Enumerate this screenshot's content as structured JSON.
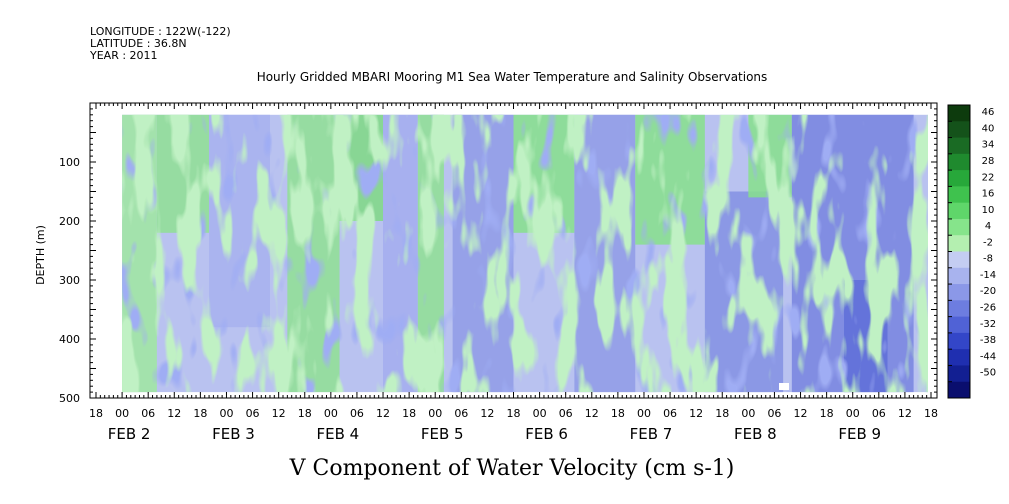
{
  "header": {
    "longitude": "LONGITUDE : 122W(-122)",
    "latitude": "LATITUDE : 36.8N",
    "year": "YEAR : 2011"
  },
  "chart_data": {
    "type": "heatmap",
    "title": "Hourly Gridded MBARI Mooring M1 Sea Water Temperature and Salinity Observations",
    "xlabel": "V Component of Water Velocity (cm s-1)",
    "ylabel": "DEPTH (m)",
    "x_start": "FEB 1 18:00",
    "x_end": "FEB 9 18:00",
    "x_hour_ticks": [
      "18",
      "00",
      "06",
      "12",
      "18",
      "00",
      "06",
      "12",
      "18",
      "00",
      "06",
      "12",
      "18",
      "00",
      "06",
      "12",
      "18",
      "00",
      "06",
      "12",
      "18",
      "00",
      "06",
      "12",
      "18",
      "00",
      "06",
      "12",
      "18",
      "00",
      "06",
      "12",
      "18"
    ],
    "x_day_labels": [
      "FEB 2",
      "FEB 3",
      "FEB 4",
      "FEB 5",
      "FEB 6",
      "FEB 7",
      "FEB 8",
      "FEB 9"
    ],
    "data_start": "FEB 2 00:00",
    "ylim": [
      500,
      0
    ],
    "y_ticks": [
      "100",
      "200",
      "300",
      "400",
      "500"
    ],
    "depth_range": [
      20,
      490
    ],
    "colorbar": {
      "ticks": [
        "46",
        "40",
        "34",
        "28",
        "22",
        "16",
        "10",
        "4",
        "-2",
        "-8",
        "-14",
        "-20",
        "-26",
        "-32",
        "-38",
        "-44",
        "-50"
      ],
      "colors": [
        "#0d3b0d",
        "#14521a",
        "#1a6b24",
        "#1f8a2e",
        "#27a83a",
        "#3fc24e",
        "#5fd66a",
        "#86e48b",
        "#b4efb0",
        "#c4cdf2",
        "#a8b3ee",
        "#8b98e8",
        "#6d7de0",
        "#5062d6",
        "#3346c8",
        "#1f2fb0",
        "#121f92",
        "#0a0e6e"
      ]
    },
    "grid": false,
    "values_summary": "V velocity ranges approx -35 to 30 cm/s; positive (green) bands extend through the upper water column roughly on FEB 2-4, FEB 5-6 and FEB 7-8; negative (blue) dominates deeper layers and FEB 8-9"
  }
}
